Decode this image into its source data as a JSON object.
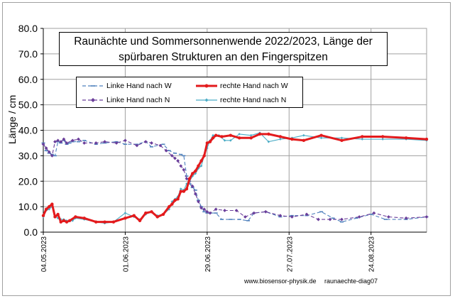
{
  "chart_data": {
    "type": "line",
    "title_line1": "Raunächte  und Sommersonnenwende 2022/2023, Länge der",
    "title_line2": "spürbaren Strukturen an den Fingerspitzen",
    "ylabel": "Länge / cm",
    "xlabel": "",
    "ylim": [
      0,
      80
    ],
    "xlim": [
      "2023-05-04",
      "2023-09-12"
    ],
    "yticks": [
      "0.0",
      "10.0",
      "20.0",
      "30.0",
      "40.0",
      "50.0",
      "60.0",
      "70.0",
      "80.0"
    ],
    "yticks_values": [
      0,
      10,
      20,
      30,
      40,
      50,
      60,
      70,
      80
    ],
    "xticks": [
      "04.05.2023",
      "01.06.2023",
      "29.06.2023",
      "27.07.2023",
      "24.08.2023"
    ],
    "xticks_dates": [
      "2023-05-04",
      "2023-06-01",
      "2023-06-29",
      "2023-07-27",
      "2023-08-24"
    ],
    "grid": true,
    "legend_position": "top-left",
    "colors": {
      "linke_w": "#4f81bd",
      "rechte_w": "#e31a1c",
      "linke_n": "#6a3d9a",
      "rechte_n": "#4bacc6",
      "grid": "#a0a0a0"
    },
    "series": [
      {
        "name": "Linke Hand nach W",
        "style": "dashed",
        "points": [
          [
            "2023-05-04",
            35
          ],
          [
            "2023-05-05",
            32
          ],
          [
            "2023-05-06",
            31
          ],
          [
            "2023-05-07",
            30.5
          ],
          [
            "2023-05-08",
            30
          ],
          [
            "2023-05-09",
            35.5
          ],
          [
            "2023-05-10",
            35
          ],
          [
            "2023-05-11",
            36
          ],
          [
            "2023-05-12",
            34.5
          ],
          [
            "2023-05-13",
            35
          ],
          [
            "2023-05-14",
            35.5
          ],
          [
            "2023-05-16",
            35.5
          ],
          [
            "2023-05-18",
            36
          ],
          [
            "2023-05-22",
            34.5
          ],
          [
            "2023-05-25",
            35
          ],
          [
            "2023-05-29",
            35.5
          ],
          [
            "2023-06-01",
            34.5
          ],
          [
            "2023-06-05",
            34.5
          ],
          [
            "2023-06-08",
            35.5
          ],
          [
            "2023-06-10",
            33.5
          ],
          [
            "2023-06-14",
            34.5
          ],
          [
            "2023-06-16",
            32
          ],
          [
            "2023-06-18",
            31
          ],
          [
            "2023-06-20",
            30.5
          ],
          [
            "2023-06-21",
            30
          ],
          [
            "2023-06-22",
            22
          ],
          [
            "2023-06-23",
            19
          ],
          [
            "2023-06-24",
            17.5
          ],
          [
            "2023-06-25",
            16.5
          ],
          [
            "2023-06-26",
            12.5
          ],
          [
            "2023-06-27",
            10
          ],
          [
            "2023-06-28",
            8
          ],
          [
            "2023-06-29",
            7.5
          ],
          [
            "2023-06-30",
            7.5
          ],
          [
            "2023-07-02",
            7.5
          ],
          [
            "2023-07-04",
            5
          ],
          [
            "2023-07-07",
            5
          ],
          [
            "2023-07-10",
            5
          ],
          [
            "2023-07-13",
            4.5
          ],
          [
            "2023-07-15",
            7.5
          ],
          [
            "2023-07-19",
            8
          ],
          [
            "2023-07-24",
            6
          ],
          [
            "2023-07-28",
            6.5
          ],
          [
            "2023-08-02",
            6.5
          ],
          [
            "2023-08-07",
            8
          ],
          [
            "2023-08-11",
            5.5
          ],
          [
            "2023-08-14",
            4
          ],
          [
            "2023-08-19",
            5.5
          ],
          [
            "2023-08-24",
            7
          ],
          [
            "2023-08-29",
            5
          ],
          [
            "2023-09-05",
            5
          ],
          [
            "2023-09-12",
            6
          ]
        ]
      },
      {
        "name": "rechte Hand nach W",
        "style": "thick",
        "points": [
          [
            "2023-05-04",
            6.5
          ],
          [
            "2023-05-05",
            9
          ],
          [
            "2023-05-06",
            10
          ],
          [
            "2023-05-07",
            11
          ],
          [
            "2023-05-08",
            6
          ],
          [
            "2023-05-09",
            7
          ],
          [
            "2023-05-10",
            4
          ],
          [
            "2023-05-11",
            4.5
          ],
          [
            "2023-05-12",
            4
          ],
          [
            "2023-05-13",
            4.5
          ],
          [
            "2023-05-15",
            6
          ],
          [
            "2023-05-18",
            5.5
          ],
          [
            "2023-05-22",
            4
          ],
          [
            "2023-05-25",
            4
          ],
          [
            "2023-05-28",
            4
          ],
          [
            "2023-06-01",
            5.5
          ],
          [
            "2023-06-04",
            6.5
          ],
          [
            "2023-06-06",
            4.5
          ],
          [
            "2023-06-08",
            7.5
          ],
          [
            "2023-06-10",
            8
          ],
          [
            "2023-06-12",
            6
          ],
          [
            "2023-06-14",
            7
          ],
          [
            "2023-06-16",
            10
          ],
          [
            "2023-06-17",
            11
          ],
          [
            "2023-06-18",
            12.5
          ],
          [
            "2023-06-19",
            13
          ],
          [
            "2023-06-20",
            16
          ],
          [
            "2023-06-21",
            16
          ],
          [
            "2023-06-22",
            17
          ],
          [
            "2023-06-23",
            21
          ],
          [
            "2023-06-24",
            23
          ],
          [
            "2023-06-25",
            24
          ],
          [
            "2023-06-26",
            26
          ],
          [
            "2023-06-27",
            28
          ],
          [
            "2023-06-28",
            30
          ],
          [
            "2023-06-29",
            35
          ],
          [
            "2023-06-30",
            35.5
          ],
          [
            "2023-07-01",
            37
          ],
          [
            "2023-07-02",
            38
          ],
          [
            "2023-07-04",
            37.5
          ],
          [
            "2023-07-07",
            38
          ],
          [
            "2023-07-10",
            37
          ],
          [
            "2023-07-14",
            37
          ],
          [
            "2023-07-17",
            38.5
          ],
          [
            "2023-07-20",
            38.5
          ],
          [
            "2023-07-24",
            37.5
          ],
          [
            "2023-07-28",
            36.5
          ],
          [
            "2023-08-01",
            36
          ],
          [
            "2023-08-07",
            38
          ],
          [
            "2023-08-14",
            36
          ],
          [
            "2023-08-21",
            37.5
          ],
          [
            "2023-08-28",
            37.5
          ],
          [
            "2023-09-05",
            37
          ],
          [
            "2023-09-12",
            36.5
          ]
        ]
      },
      {
        "name": "Linke Hand nach N",
        "style": "dashed",
        "points": [
          [
            "2023-05-04",
            34.5
          ],
          [
            "2023-05-05",
            33
          ],
          [
            "2023-05-06",
            31.5
          ],
          [
            "2023-05-07",
            30
          ],
          [
            "2023-05-08",
            35.5
          ],
          [
            "2023-05-09",
            36
          ],
          [
            "2023-05-10",
            35.5
          ],
          [
            "2023-05-11",
            36.5
          ],
          [
            "2023-05-12",
            35
          ],
          [
            "2023-05-14",
            36
          ],
          [
            "2023-05-16",
            36.5
          ],
          [
            "2023-05-18",
            35
          ],
          [
            "2023-05-22",
            35
          ],
          [
            "2023-05-25",
            35.5
          ],
          [
            "2023-05-29",
            35
          ],
          [
            "2023-06-01",
            36
          ],
          [
            "2023-06-05",
            34
          ],
          [
            "2023-06-08",
            35.5
          ],
          [
            "2023-06-10",
            35
          ],
          [
            "2023-06-13",
            34
          ],
          [
            "2023-06-15",
            32
          ],
          [
            "2023-06-17",
            30
          ],
          [
            "2023-06-18",
            29
          ],
          [
            "2023-06-19",
            28
          ],
          [
            "2023-06-20",
            26
          ],
          [
            "2023-06-21",
            24.5
          ],
          [
            "2023-06-22",
            21
          ],
          [
            "2023-06-23",
            20
          ],
          [
            "2023-06-24",
            18
          ],
          [
            "2023-06-25",
            15
          ],
          [
            "2023-06-26",
            12
          ],
          [
            "2023-06-27",
            9.5
          ],
          [
            "2023-06-28",
            9
          ],
          [
            "2023-06-29",
            8
          ],
          [
            "2023-06-30",
            7.5
          ],
          [
            "2023-07-02",
            9
          ],
          [
            "2023-07-05",
            8.5
          ],
          [
            "2023-07-09",
            8.5
          ],
          [
            "2023-07-12",
            6
          ],
          [
            "2023-07-15",
            7.5
          ],
          [
            "2023-07-19",
            8
          ],
          [
            "2023-07-24",
            6.5
          ],
          [
            "2023-07-28",
            6
          ],
          [
            "2023-08-02",
            7
          ],
          [
            "2023-08-06",
            5
          ],
          [
            "2023-08-10",
            5
          ],
          [
            "2023-08-14",
            5
          ],
          [
            "2023-08-20",
            6
          ],
          [
            "2023-08-25",
            7.5
          ],
          [
            "2023-08-30",
            6
          ],
          [
            "2023-09-05",
            5.5
          ],
          [
            "2023-09-12",
            6
          ]
        ]
      },
      {
        "name": "rechte Hand nach N",
        "style": "solid",
        "points": [
          [
            "2023-05-04",
            6
          ],
          [
            "2023-05-05",
            8.5
          ],
          [
            "2023-05-06",
            9
          ],
          [
            "2023-05-07",
            10
          ],
          [
            "2023-05-08",
            6.5
          ],
          [
            "2023-05-09",
            5.5
          ],
          [
            "2023-05-10",
            5
          ],
          [
            "2023-05-11",
            5
          ],
          [
            "2023-05-12",
            4.5
          ],
          [
            "2023-05-14",
            4.5
          ],
          [
            "2023-05-15",
            5.5
          ],
          [
            "2023-05-18",
            5
          ],
          [
            "2023-05-22",
            4
          ],
          [
            "2023-05-25",
            3.5
          ],
          [
            "2023-05-28",
            4
          ],
          [
            "2023-06-01",
            7.5
          ],
          [
            "2023-06-04",
            6
          ],
          [
            "2023-06-06",
            5
          ],
          [
            "2023-06-08",
            7
          ],
          [
            "2023-06-10",
            8
          ],
          [
            "2023-06-12",
            6.5
          ],
          [
            "2023-06-14",
            7
          ],
          [
            "2023-06-16",
            9
          ],
          [
            "2023-06-17",
            12
          ],
          [
            "2023-06-18",
            13
          ],
          [
            "2023-06-19",
            14
          ],
          [
            "2023-06-20",
            17
          ],
          [
            "2023-06-21",
            16.5
          ],
          [
            "2023-06-22",
            19
          ],
          [
            "2023-06-23",
            20
          ],
          [
            "2023-06-24",
            22
          ],
          [
            "2023-06-25",
            23
          ],
          [
            "2023-06-26",
            25
          ],
          [
            "2023-06-27",
            26
          ],
          [
            "2023-06-28",
            30
          ],
          [
            "2023-06-29",
            33
          ],
          [
            "2023-06-30",
            36
          ],
          [
            "2023-07-01",
            38
          ],
          [
            "2023-07-03",
            38
          ],
          [
            "2023-07-05",
            36
          ],
          [
            "2023-07-07",
            36
          ],
          [
            "2023-07-10",
            38.5
          ],
          [
            "2023-07-14",
            38
          ],
          [
            "2023-07-17",
            39
          ],
          [
            "2023-07-20",
            35.5
          ],
          [
            "2023-07-24",
            36.5
          ],
          [
            "2023-07-28",
            37
          ],
          [
            "2023-08-01",
            38
          ],
          [
            "2023-08-07",
            37
          ],
          [
            "2023-08-14",
            37
          ],
          [
            "2023-08-21",
            36.5
          ],
          [
            "2023-08-28",
            36.5
          ],
          [
            "2023-09-05",
            36.5
          ],
          [
            "2023-09-12",
            36
          ]
        ]
      }
    ]
  },
  "footer": {
    "website": "www.biosensor-physik.de",
    "diagram_id": "raunaechte-diag07"
  }
}
